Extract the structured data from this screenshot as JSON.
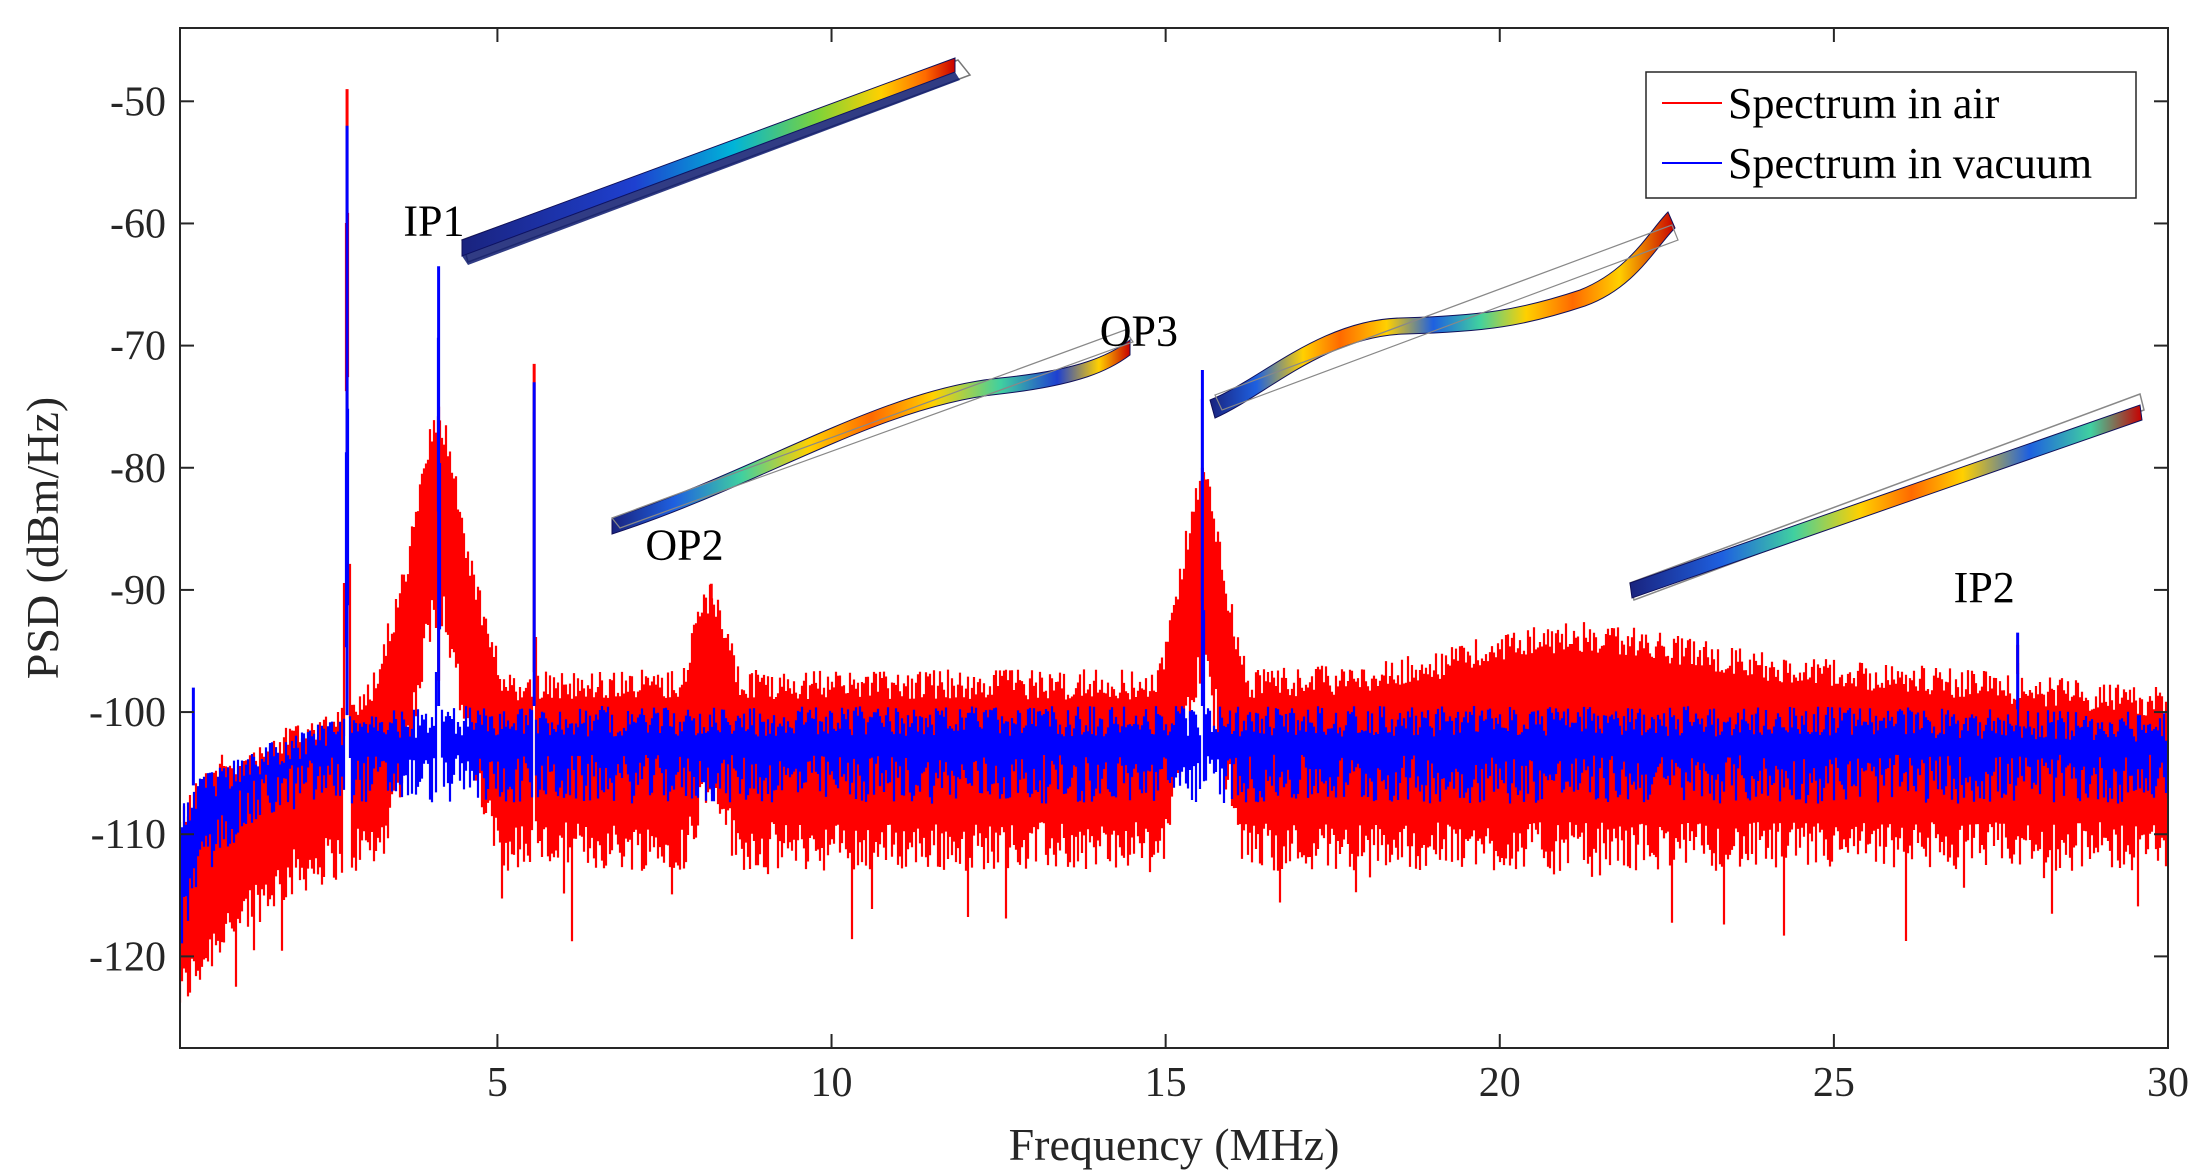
{
  "chart_data": {
    "type": "line",
    "xlabel": "Frequency (MHz)",
    "ylabel": "PSD (dBm/Hz)",
    "xlim": [
      0.25,
      30
    ],
    "ylim": [
      -127.5,
      -44
    ],
    "xticks": [
      5,
      10,
      15,
      20,
      25,
      30
    ],
    "yticks": [
      -120,
      -110,
      -100,
      -90,
      -80,
      -70,
      -60,
      -50
    ],
    "grid": false,
    "legend_position": "top-right",
    "colors": {
      "air": "#ff0000",
      "vacuum": "#0000ff",
      "axis": "#262626"
    },
    "series": [
      {
        "name": "Spectrum in air",
        "color": "#ff0000",
        "noise_band": {
          "frequency_mhz": [
            0.25,
            0.5,
            1.0,
            1.5,
            2.0,
            2.5,
            3.0,
            4.0,
            5.0,
            6.0,
            8.0,
            10.0,
            12.0,
            14.0,
            16.0,
            18.0,
            19.0,
            20.0,
            21.0,
            22.0,
            23.0,
            24.0,
            25.0,
            26.0,
            27.0,
            28.0,
            29.0,
            30.0
          ],
          "upper_dbm_hz": [
            -108,
            -105,
            -103,
            -102,
            -100.5,
            -99.5,
            -98.5,
            -97.5,
            -97,
            -96.5,
            -96.5,
            -96.5,
            -96.5,
            -96.5,
            -96.5,
            -96,
            -95,
            -93.5,
            -92.5,
            -93,
            -94,
            -95,
            -95.5,
            -96,
            -96.5,
            -97,
            -97.5,
            -98
          ],
          "lower_dbm_hz": [
            -125,
            -123,
            -119,
            -117,
            -115,
            -114,
            -113,
            -113,
            -113,
            -113,
            -113,
            -113,
            -113,
            -113,
            -113,
            -113,
            -113,
            -113,
            -113,
            -113,
            -113,
            -113,
            -113,
            -113,
            -113,
            -113,
            -113,
            -113
          ]
        },
        "peaks": [
          {
            "f": 2.75,
            "psd": -49,
            "width": 0.02
          },
          {
            "f": 4.12,
            "psd": -75,
            "width": 0.25
          },
          {
            "f": 5.55,
            "psd": -71.5,
            "width": 0.02
          },
          {
            "f": 8.2,
            "psd": -89.5,
            "width": 0.35
          },
          {
            "f": 15.55,
            "psd": -80,
            "width": 0.25
          },
          {
            "f": 27.75,
            "psd": -94.5,
            "width": 0.05
          }
        ],
        "dips_dbm_hz": [
          -119,
          -118,
          -117
        ]
      },
      {
        "name": "Spectrum in vacuum",
        "color": "#0000ff",
        "noise_band": {
          "frequency_mhz": [
            0.25,
            0.5,
            1.0,
            1.5,
            2.0,
            2.5,
            3.0,
            4.0,
            5.0,
            10.0,
            15.0,
            20.0,
            25.0,
            30.0
          ],
          "upper_dbm_hz": [
            -108,
            -105.5,
            -104,
            -102.5,
            -101.5,
            -100.5,
            -100,
            -99.5,
            -99.5,
            -99.5,
            -99.5,
            -99.5,
            -99.5,
            -100
          ],
          "lower_dbm_hz": [
            -120,
            -115,
            -111,
            -109,
            -108,
            -107.5,
            -107.5,
            -107.5,
            -107.5,
            -107.5,
            -107.5,
            -107.5,
            -107.5,
            -107.5
          ]
        },
        "peaks": [
          {
            "f": 0.45,
            "psd": -98,
            "width": 0.01
          },
          {
            "f": 2.75,
            "psd": -52,
            "width": 0.01
          },
          {
            "f": 4.12,
            "psd": -63.5,
            "width": 0.02
          },
          {
            "f": 5.55,
            "psd": -73,
            "width": 0.01
          },
          {
            "f": 15.55,
            "psd": -72,
            "width": 0.02
          },
          {
            "f": 27.75,
            "psd": -93.5,
            "width": 0.02
          }
        ]
      }
    ],
    "annotations": [
      {
        "text": "IP1",
        "f": 4.05,
        "psd": -61
      },
      {
        "text": "OP2",
        "f": 7.8,
        "psd": -87.5
      },
      {
        "text": "OP3",
        "f": 14.6,
        "psd": -70
      },
      {
        "text": "IP2",
        "f": 27.25,
        "psd": -91
      }
    ],
    "mode_shape_insets": [
      {
        "label": "IP1",
        "shape": "in-plane-1"
      },
      {
        "label": "OP2",
        "shape": "out-of-plane-2"
      },
      {
        "label": "OP3",
        "shape": "out-of-plane-3"
      },
      {
        "label": "IP2",
        "shape": "in-plane-2"
      }
    ]
  }
}
